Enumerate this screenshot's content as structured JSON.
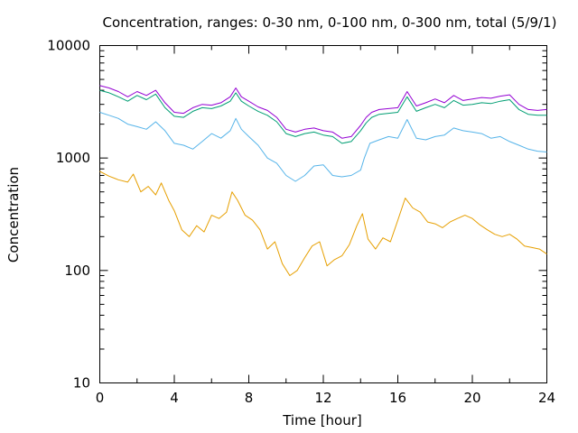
{
  "chart_data": {
    "type": "line",
    "title": "Concentration, ranges: 0-30 nm, 0-100 nm, 0-300 nm, total (5/9/1)",
    "xlabel": "Time [hour]",
    "ylabel": "Concentration",
    "xlim": [
      0,
      24
    ],
    "ylim": [
      10,
      10000
    ],
    "yscale": "log",
    "grid": false,
    "legend": "none",
    "x_ticks": [
      {
        "value": 0,
        "label": "0"
      },
      {
        "value": 4,
        "label": "4"
      },
      {
        "value": 8,
        "label": "8"
      },
      {
        "value": 12,
        "label": "12"
      },
      {
        "value": 16,
        "label": "16"
      },
      {
        "value": 20,
        "label": "20"
      },
      {
        "value": 24,
        "label": "24"
      }
    ],
    "y_ticks": [
      {
        "value": 10,
        "label": "10"
      },
      {
        "value": 100,
        "label": "100"
      },
      {
        "value": 1000,
        "label": "1000"
      },
      {
        "value": 10000,
        "label": "10000"
      }
    ],
    "series": [
      {
        "color": "#e69f00",
        "x": [
          0,
          0.5,
          1,
          1.5,
          1.8,
          2.2,
          2.6,
          3,
          3.3,
          3.7,
          4,
          4.4,
          4.8,
          5.2,
          5.6,
          6,
          6.4,
          6.8,
          7.1,
          7.4,
          7.8,
          8.2,
          8.6,
          9,
          9.4,
          9.8,
          10.2,
          10.6,
          11,
          11.4,
          11.8,
          12.2,
          12.6,
          13,
          13.4,
          13.8,
          14.1,
          14.4,
          14.8,
          15.2,
          15.6,
          16,
          16.4,
          16.8,
          17.2,
          17.6,
          18,
          18.4,
          18.8,
          19.2,
          19.6,
          20,
          20.4,
          20.8,
          21.2,
          21.6,
          22,
          22.4,
          22.8,
          23.2,
          23.6,
          24
        ],
        "y": [
          760,
          690,
          640,
          610,
          720,
          500,
          560,
          470,
          600,
          420,
          340,
          230,
          200,
          250,
          220,
          310,
          290,
          330,
          500,
          420,
          310,
          280,
          230,
          155,
          180,
          115,
          90,
          100,
          130,
          165,
          180,
          110,
          125,
          135,
          170,
          250,
          320,
          190,
          155,
          195,
          180,
          280,
          440,
          360,
          330,
          270,
          260,
          240,
          270,
          290,
          310,
          290,
          255,
          230,
          210,
          200,
          210,
          190,
          165,
          160,
          155,
          140
        ]
      },
      {
        "color": "#56b4e9",
        "x": [
          0,
          0.5,
          1,
          1.5,
          2,
          2.5,
          3,
          3.5,
          4,
          4.5,
          5,
          5.5,
          6,
          6.5,
          7,
          7.3,
          7.6,
          8,
          8.5,
          9,
          9.5,
          10,
          10.5,
          11,
          11.5,
          12,
          12.5,
          13,
          13.5,
          14,
          14.2,
          14.5,
          15,
          15.5,
          16,
          16.5,
          17,
          17.5,
          18,
          18.5,
          19,
          19.5,
          20,
          20.5,
          21,
          21.5,
          22,
          22.5,
          23,
          23.5,
          24
        ],
        "y": [
          2550,
          2400,
          2250,
          2000,
          1900,
          1800,
          2100,
          1750,
          1350,
          1300,
          1200,
          1400,
          1650,
          1500,
          1750,
          2250,
          1800,
          1550,
          1300,
          1000,
          900,
          700,
          620,
          700,
          850,
          870,
          700,
          680,
          700,
          780,
          1000,
          1350,
          1450,
          1550,
          1500,
          2200,
          1500,
          1450,
          1550,
          1600,
          1850,
          1750,
          1700,
          1650,
          1500,
          1550,
          1400,
          1300,
          1200,
          1150,
          1130
        ]
      },
      {
        "color": "#009e73",
        "x": [
          0,
          0.5,
          1,
          1.5,
          2,
          2.5,
          3,
          3.5,
          4,
          4.5,
          5,
          5.5,
          6,
          6.5,
          7,
          7.3,
          7.6,
          8,
          8.5,
          9,
          9.5,
          10,
          10.5,
          11,
          11.5,
          12,
          12.5,
          13,
          13.5,
          14,
          14.3,
          14.6,
          15,
          15.5,
          16,
          16.5,
          17,
          17.5,
          18,
          18.5,
          19,
          19.5,
          20,
          20.5,
          21,
          21.5,
          22,
          22.5,
          23,
          23.5,
          24
        ],
        "y": [
          4000,
          3800,
          3500,
          3200,
          3600,
          3300,
          3700,
          2800,
          2350,
          2300,
          2600,
          2800,
          2750,
          2900,
          3200,
          3800,
          3200,
          2900,
          2600,
          2400,
          2100,
          1650,
          1550,
          1650,
          1700,
          1600,
          1550,
          1350,
          1400,
          1750,
          2050,
          2300,
          2450,
          2500,
          2550,
          3500,
          2600,
          2800,
          3000,
          2800,
          3250,
          2950,
          3000,
          3100,
          3050,
          3200,
          3300,
          2700,
          2450,
          2400,
          2400
        ]
      },
      {
        "color": "#9400d3",
        "x": [
          0,
          0.5,
          1,
          1.5,
          2,
          2.5,
          3,
          3.5,
          4,
          4.5,
          5,
          5.5,
          6,
          6.5,
          7,
          7.3,
          7.6,
          8,
          8.5,
          9,
          9.5,
          10,
          10.5,
          11,
          11.5,
          12,
          12.5,
          13,
          13.5,
          14,
          14.3,
          14.6,
          15,
          15.5,
          16,
          16.5,
          17,
          17.5,
          18,
          18.5,
          19,
          19.5,
          20,
          20.5,
          21,
          21.5,
          22,
          22.5,
          23,
          23.5,
          24
        ],
        "y": [
          4400,
          4200,
          3900,
          3500,
          3900,
          3600,
          4000,
          3100,
          2550,
          2500,
          2800,
          3000,
          2950,
          3100,
          3500,
          4200,
          3500,
          3200,
          2850,
          2650,
          2300,
          1800,
          1700,
          1800,
          1850,
          1750,
          1700,
          1500,
          1550,
          1950,
          2300,
          2550,
          2700,
          2750,
          2800,
          3900,
          2900,
          3100,
          3350,
          3100,
          3600,
          3250,
          3350,
          3450,
          3400,
          3550,
          3650,
          3000,
          2700,
          2650,
          2700
        ]
      }
    ]
  }
}
